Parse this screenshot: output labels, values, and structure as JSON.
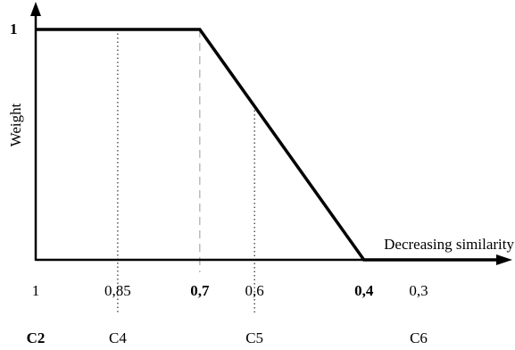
{
  "chart_data": {
    "type": "line",
    "ylabel": "Weight",
    "xlabel": "Decreasing similarity",
    "y_top_label": "1",
    "series": [
      {
        "points": [
          [
            1,
            1
          ],
          [
            0.7,
            1
          ],
          [
            0.4,
            0
          ]
        ]
      }
    ],
    "x_reversed": true,
    "xlim": [
      1,
      0.3
    ],
    "ylim": [
      0,
      1
    ],
    "ticks": [
      {
        "value": 1,
        "label": "1",
        "bold": false,
        "case": "C2",
        "case_bold": true,
        "guide": "none"
      },
      {
        "value": 0.85,
        "label": "0,85",
        "bold": false,
        "case": "C4",
        "case_bold": false,
        "guide": "dotted"
      },
      {
        "value": 0.7,
        "label": "0,7",
        "bold": true,
        "case": "",
        "case_bold": false,
        "guide": "dashed"
      },
      {
        "value": 0.6,
        "label": "0,6",
        "bold": false,
        "case": "C5",
        "case_bold": false,
        "guide": "dotted"
      },
      {
        "value": 0.4,
        "label": "0,4",
        "bold": true,
        "case": "",
        "case_bold": false,
        "guide": "none"
      },
      {
        "value": 0.3,
        "label": "0,3",
        "bold": false,
        "case": "C6",
        "case_bold": false,
        "guide": "none"
      }
    ],
    "grid": false
  }
}
